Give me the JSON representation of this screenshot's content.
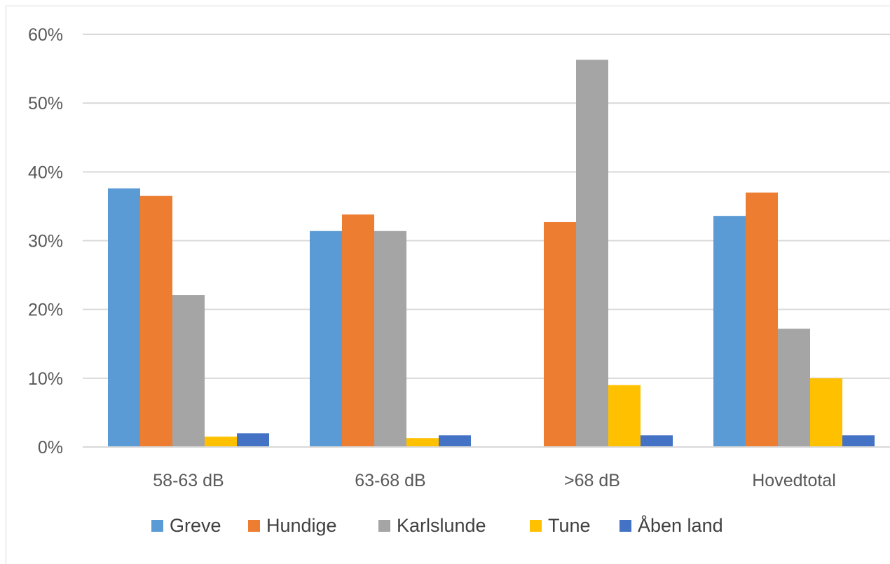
{
  "chart_data": {
    "type": "bar",
    "title": "",
    "xlabel": "",
    "ylabel": "",
    "categories": [
      "58-63 dB",
      "63-68 dB",
      ">68 dB",
      "Hovedtotal"
    ],
    "ylim": [
      0,
      60
    ],
    "yticks": [
      0,
      10,
      20,
      30,
      40,
      50,
      60
    ],
    "ytick_suffix": "%",
    "grid": true,
    "legend_position": "bottom",
    "series": [
      {
        "name": "Greve",
        "color": "#5B9BD5",
        "values": [
          37.6,
          31.4,
          0,
          33.6
        ]
      },
      {
        "name": "Hundige",
        "color": "#ED7D31",
        "values": [
          36.5,
          33.8,
          32.7,
          37.0
        ]
      },
      {
        "name": "Karlslunde",
        "color": "#A5A5A5",
        "values": [
          22.1,
          31.4,
          56.3,
          17.2
        ]
      },
      {
        "name": "Tune",
        "color": "#FFC000",
        "values": [
          1.5,
          1.3,
          9.0,
          10.0
        ]
      },
      {
        "name": "Åben land",
        "color": "#4472C4",
        "values": [
          2.0,
          1.7,
          1.7,
          1.7
        ]
      }
    ]
  }
}
